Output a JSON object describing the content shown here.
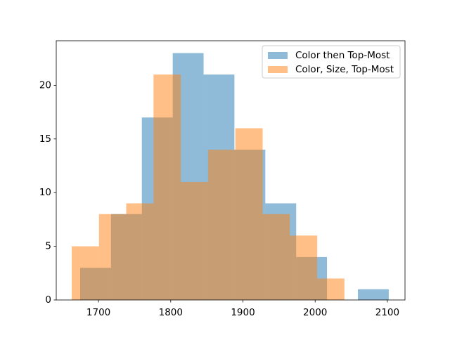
{
  "chart_data": {
    "type": "histogram",
    "series": [
      {
        "name": "Color then Top-Most",
        "color": "#1f77b4",
        "bins": [
          1674.6,
          1717.3,
          1760.0,
          1802.8,
          1845.5,
          1888.2,
          1931.0,
          1973.7,
          2016.4,
          2059.2,
          2101.9
        ],
        "values": [
          3,
          8,
          17,
          23,
          21,
          14,
          9,
          4,
          0,
          1
        ]
      },
      {
        "name": "Color, Size, Top-Most",
        "color": "#ff7f0e",
        "bins": [
          1662.9,
          1700.7,
          1738.4,
          1776.2,
          1814.0,
          1851.7,
          1889.5,
          1927.3,
          1965.0,
          2002.8,
          2040.5
        ],
        "values": [
          5,
          8,
          9,
          21,
          11,
          14,
          16,
          8,
          6,
          2
        ]
      }
    ],
    "opacity": 0.5,
    "xlim": [
      1641.5,
      2124.4
    ],
    "xticks": [
      1700,
      1800,
      1900,
      2000,
      2100
    ],
    "ylim": [
      0,
      24.15
    ],
    "yticks": [
      0,
      5,
      10,
      15,
      20
    ],
    "legend": "upper right"
  }
}
